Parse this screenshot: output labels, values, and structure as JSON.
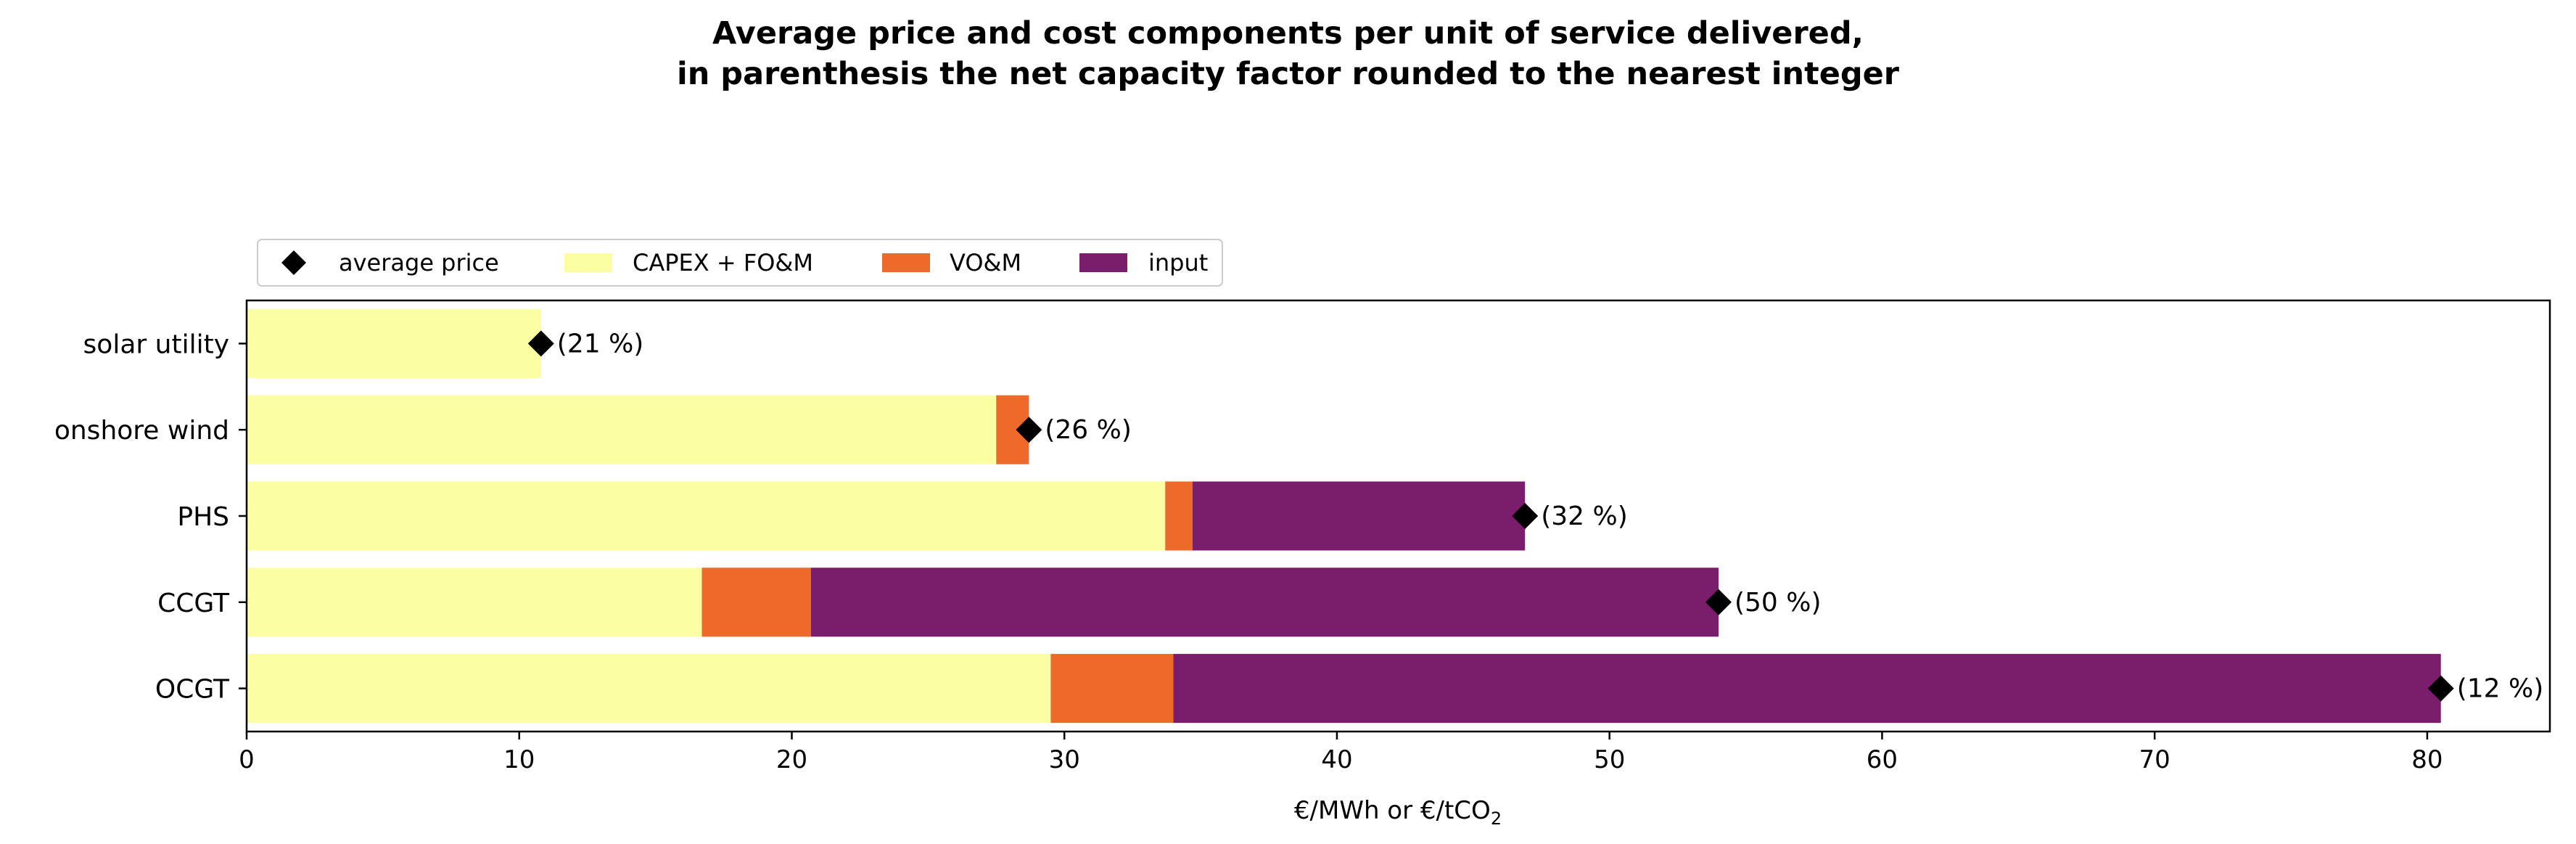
{
  "title_line1": "Average price and cost components per unit of service delivered,",
  "title_line2": "in parenthesis the net capacity factor rounded to the nearest integer",
  "chart_data": {
    "type": "bar",
    "orientation": "horizontal",
    "stacked": true,
    "categories": [
      "solar utility",
      "onshore wind",
      "PHS",
      "CCGT",
      "OCGT"
    ],
    "series": [
      {
        "name": "CAPEX + FO&M",
        "color": "#fcfea4",
        "values": [
          10.8,
          27.5,
          33.7,
          16.7,
          29.5
        ]
      },
      {
        "name": "VO&M",
        "color": "#ed6a2b",
        "values": [
          0,
          1.2,
          1.0,
          4.0,
          4.5
        ]
      },
      {
        "name": "input",
        "color": "#7a1d6c",
        "values": [
          0,
          0,
          12.2,
          33.3,
          46.5
        ]
      }
    ],
    "average_price": {
      "name": "average price",
      "color": "#000000",
      "values": [
        10.8,
        28.7,
        46.9,
        54.0,
        80.5
      ]
    },
    "capacity_factor_labels": [
      "(21 %)",
      "(26 %)",
      "(32 %)",
      "(50 %)",
      "(12 %)"
    ],
    "xlim": [
      0,
      84.5
    ],
    "xticks": [
      "0",
      "10",
      "20",
      "30",
      "40",
      "50",
      "60",
      "70",
      "80"
    ],
    "xlabel_main": "€/MWh or €/tCO",
    "xlabel_sub": "2",
    "legend_position": "top-left (above axes)",
    "legend_order": [
      "average price",
      "CAPEX + FO&M",
      "VO&M",
      "input"
    ]
  }
}
